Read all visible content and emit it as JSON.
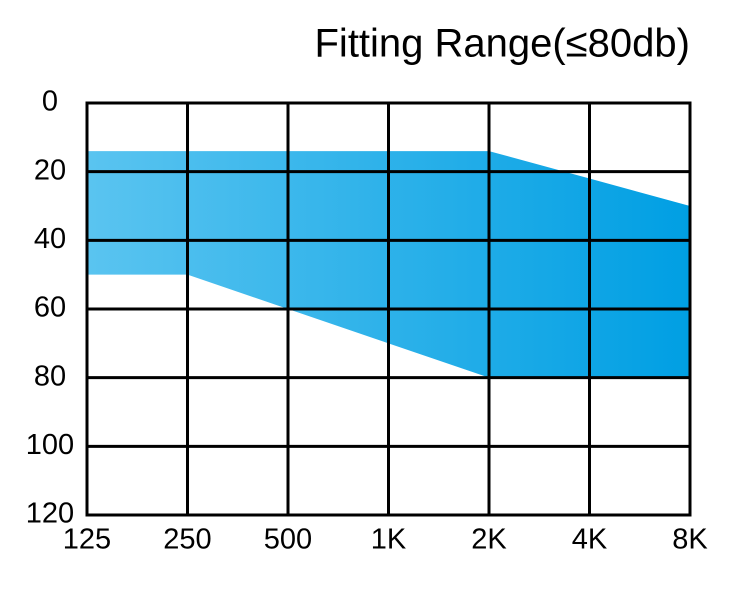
{
  "chart_data": {
    "type": "range-area",
    "title": "Fitting Range(≤80db)",
    "categories": [
      "125",
      "250",
      "500",
      "1K",
      "2K",
      "4K",
      "8K"
    ],
    "series": [
      {
        "values": [
          14,
          14,
          14,
          14,
          14,
          22,
          30
        ]
      },
      {
        "values": [
          50,
          50,
          60,
          70,
          80,
          80,
          80
        ]
      }
    ],
    "gradient": [
      "#5ac4f0",
      "#009fe3"
    ],
    "ylim": [
      0,
      120
    ],
    "y_reversed": true,
    "yticks": [
      0,
      20,
      40,
      60,
      80,
      100,
      120
    ],
    "grid": true
  }
}
